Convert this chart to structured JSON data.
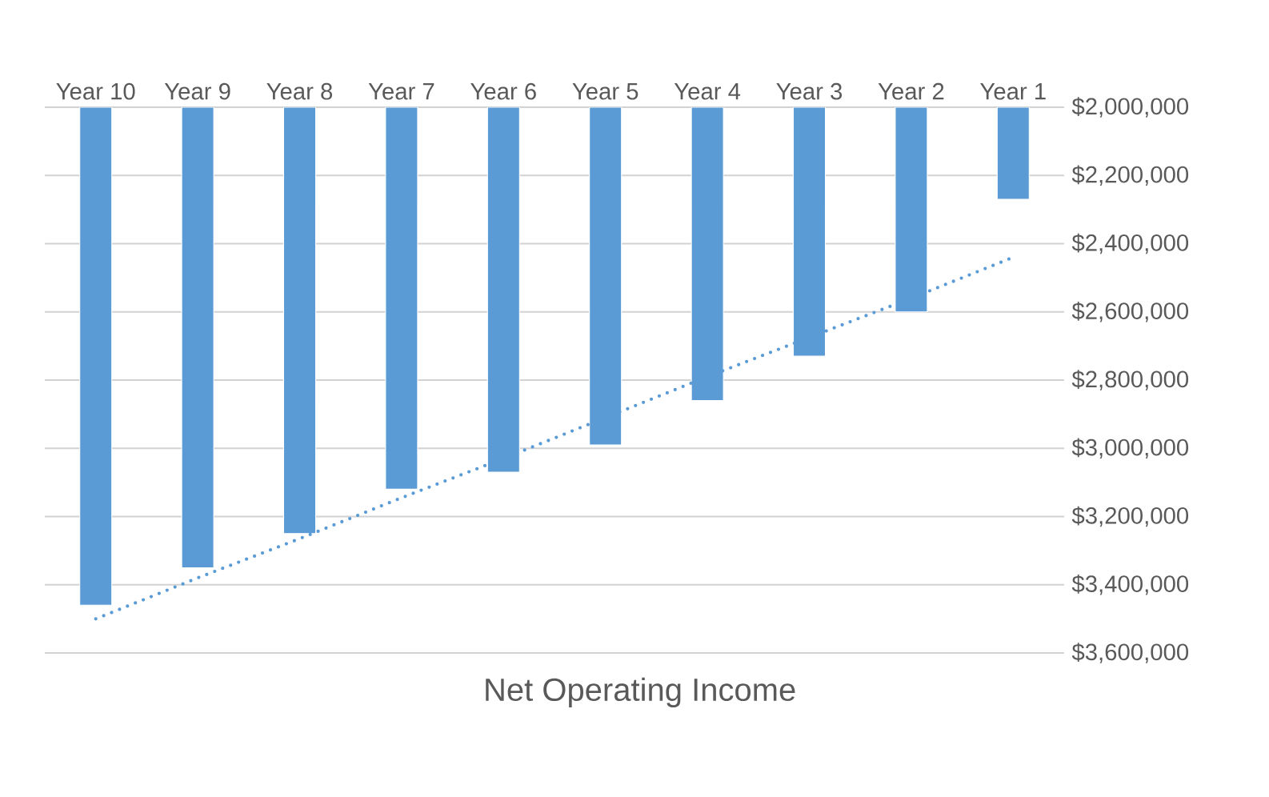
{
  "chart_data": {
    "type": "bar",
    "title": "Net Operating Income",
    "categories": [
      "Year 10",
      "Year 9",
      "Year 8",
      "Year 7",
      "Year 6",
      "Year 5",
      "Year 4",
      "Year 3",
      "Year 2",
      "Year 1"
    ],
    "series": [
      {
        "color": "#5b9bd5",
        "values": [
          3460000,
          3350000,
          3250000,
          3120000,
          3070000,
          2990000,
          2860000,
          2730000,
          2600000,
          2270000
        ]
      },
      {
        "type": "line",
        "color": "#5b9bd5",
        "line_style": "dotted",
        "marker": "none",
        "values": [
          3500000,
          3380000,
          3265000,
          3145000,
          3030000,
          2910000,
          2790000,
          2675000,
          2560000,
          2440000
        ]
      }
    ],
    "ylim": [
      3600000,
      2000000
    ],
    "yticks": [
      {
        "value": 2000000,
        "label": "$2,000,000"
      },
      {
        "value": 2200000,
        "label": "$2,200,000"
      },
      {
        "value": 2400000,
        "label": "$2,400,000"
      },
      {
        "value": 2600000,
        "label": "$2,600,000"
      },
      {
        "value": 2800000,
        "label": "$2,800,000"
      },
      {
        "value": 3000000,
        "label": "$3,000,000"
      },
      {
        "value": 3200000,
        "label": "$3,200,000"
      },
      {
        "value": 3400000,
        "label": "$3,400,000"
      },
      {
        "value": 3600000,
        "label": "$3,600,000"
      }
    ],
    "grid": "y"
  }
}
